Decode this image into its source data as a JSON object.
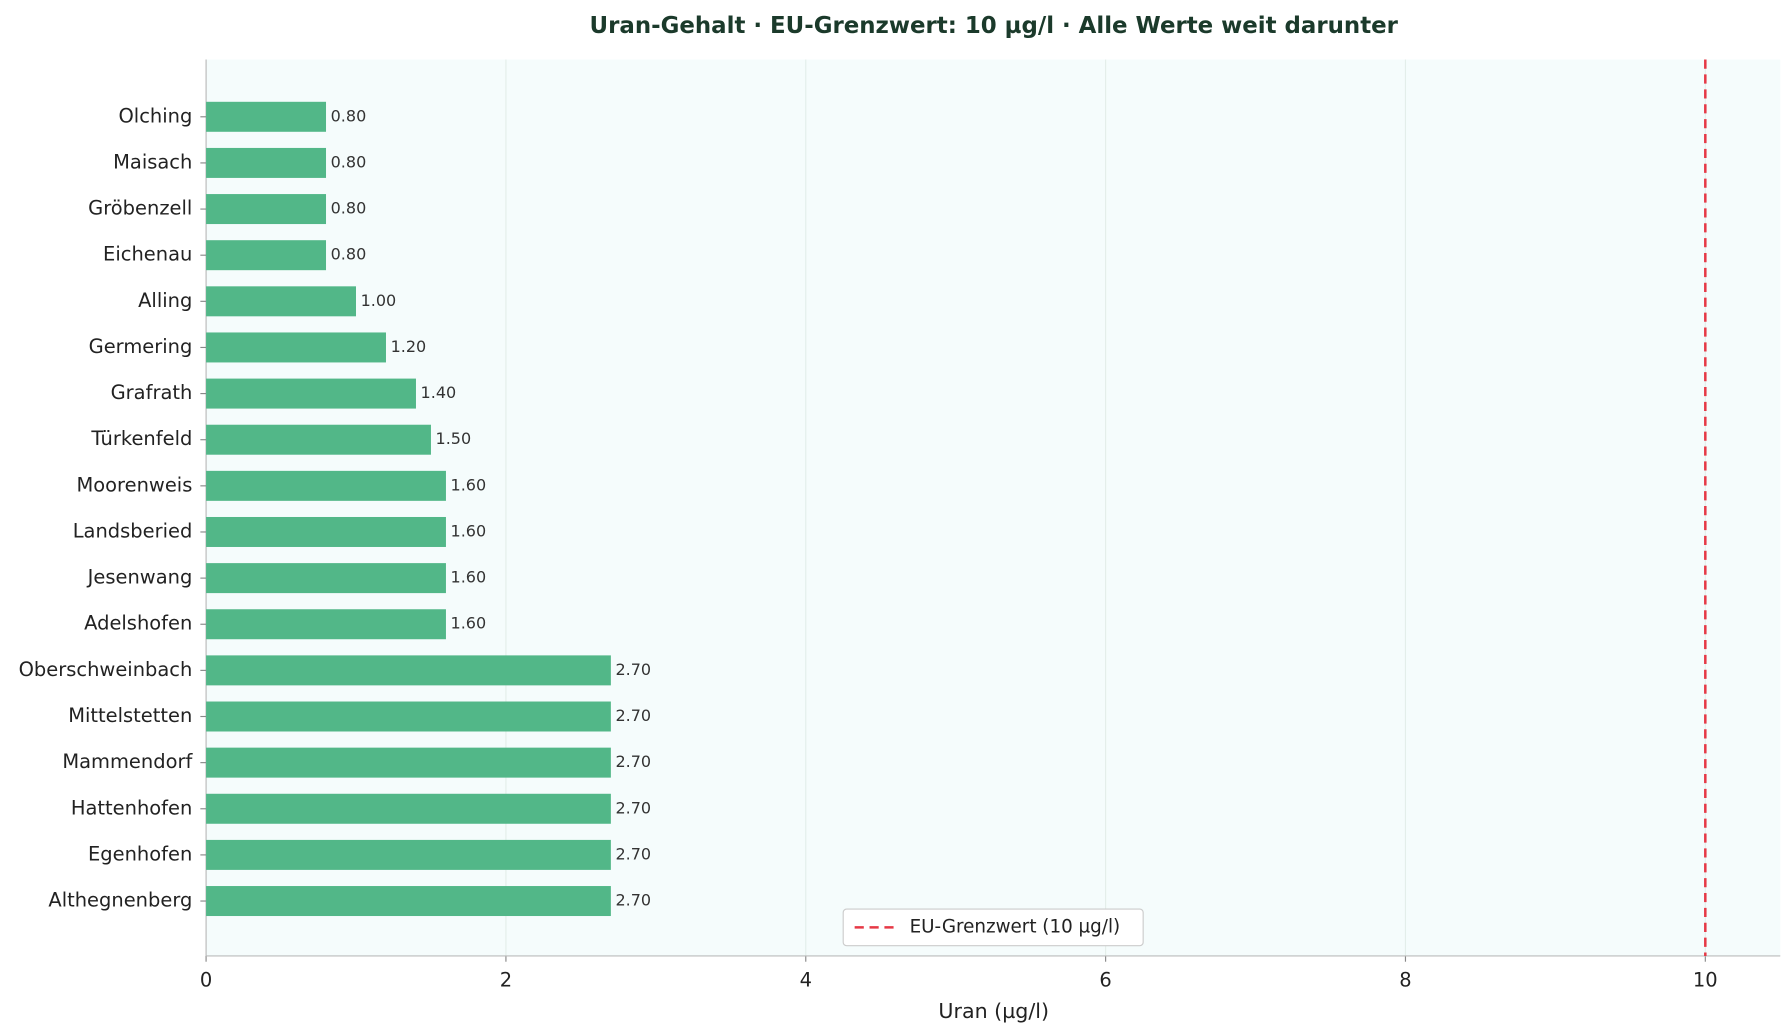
{
  "chart_data": {
    "type": "barh",
    "title": "Uran-Gehalt · EU-Grenzwert: 10 µg/l · Alle Werte weit darunter",
    "xlabel": "Uran (µg/l)",
    "categories": [
      "Olching",
      "Maisach",
      "Gröbenzell",
      "Eichenau",
      "Alling",
      "Germering",
      "Grafrath",
      "Türkenfeld",
      "Moorenweis",
      "Landsberied",
      "Jesenwang",
      "Adelshofen",
      "Oberschweinbach",
      "Mittelstetten",
      "Mammendorf",
      "Hattenhofen",
      "Egenhofen",
      "Althegnenberg"
    ],
    "values": [
      0.8,
      0.8,
      0.8,
      0.8,
      1.0,
      1.2,
      1.4,
      1.5,
      1.6,
      1.6,
      1.6,
      1.6,
      2.7,
      2.7,
      2.7,
      2.7,
      2.7,
      2.7
    ],
    "value_labels": [
      "0.80",
      "0.80",
      "0.80",
      "0.80",
      "1.00",
      "1.20",
      "1.40",
      "1.50",
      "1.60",
      "1.60",
      "1.60",
      "1.60",
      "2.70",
      "2.70",
      "2.70",
      "2.70",
      "2.70",
      "2.70"
    ],
    "color": "#52b788",
    "xlim": [
      0,
      10.5
    ],
    "xticks": [
      0,
      2,
      4,
      6,
      8,
      10
    ],
    "grid": true,
    "threshold": {
      "value": 10,
      "label": "EU-Grenzwert (10 µg/l)",
      "color": "#e63946"
    },
    "legend": "lower center"
  }
}
